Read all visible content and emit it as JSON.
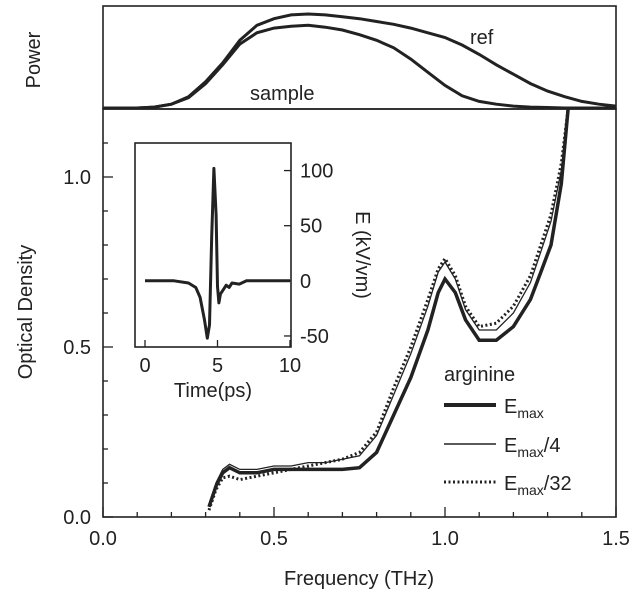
{
  "chart_data": [
    {
      "type": "line",
      "panel": "power",
      "ylabel": "Power",
      "xlim": [
        0.0,
        1.5
      ],
      "annotations": [
        "ref",
        "sample"
      ],
      "series": [
        {
          "name": "ref",
          "x": [
            0.0,
            0.1,
            0.15,
            0.2,
            0.25,
            0.3,
            0.35,
            0.4,
            0.45,
            0.5,
            0.55,
            0.6,
            0.65,
            0.7,
            0.75,
            0.8,
            0.85,
            0.9,
            0.95,
            1.0,
            1.05,
            1.1,
            1.15,
            1.2,
            1.25,
            1.3,
            1.35,
            1.4,
            1.45,
            1.5
          ],
          "y": [
            0.0,
            0.0,
            0.01,
            0.04,
            0.12,
            0.28,
            0.48,
            0.72,
            0.88,
            0.95,
            0.99,
            1.0,
            0.99,
            0.97,
            0.95,
            0.92,
            0.89,
            0.85,
            0.8,
            0.75,
            0.67,
            0.57,
            0.46,
            0.36,
            0.26,
            0.18,
            0.12,
            0.07,
            0.04,
            0.02
          ]
        },
        {
          "name": "sample",
          "x": [
            0.0,
            0.1,
            0.15,
            0.2,
            0.25,
            0.3,
            0.35,
            0.4,
            0.45,
            0.5,
            0.55,
            0.6,
            0.65,
            0.7,
            0.75,
            0.8,
            0.85,
            0.9,
            0.95,
            1.0,
            1.05,
            1.1,
            1.15,
            1.2,
            1.25,
            1.3,
            1.35,
            1.4,
            1.45,
            1.5
          ],
          "y": [
            0.0,
            0.0,
            0.01,
            0.04,
            0.11,
            0.26,
            0.46,
            0.68,
            0.8,
            0.85,
            0.87,
            0.88,
            0.86,
            0.83,
            0.78,
            0.72,
            0.64,
            0.52,
            0.38,
            0.24,
            0.13,
            0.07,
            0.04,
            0.02,
            0.01,
            0.005,
            0.0,
            0.0,
            0.0,
            0.0
          ]
        }
      ]
    },
    {
      "type": "line",
      "panel": "optical-density",
      "xlabel": "Frequency (THz)",
      "ylabel": "Optical Density",
      "xlim": [
        0.0,
        1.5
      ],
      "ylim": [
        0.0,
        1.2
      ],
      "xticks": [
        "0.0",
        "0.5",
        "1.0",
        "1.5"
      ],
      "yticks": [
        "0.0",
        "0.5",
        "1.0"
      ],
      "legend_title": "arginine",
      "legend_position": "lower-right",
      "series": [
        {
          "name": "E_max",
          "legend_main": "E",
          "legend_sub": "max",
          "legend_suffix": "",
          "style": "thick",
          "x": [
            0.31,
            0.33,
            0.35,
            0.37,
            0.4,
            0.45,
            0.5,
            0.55,
            0.6,
            0.65,
            0.7,
            0.75,
            0.8,
            0.85,
            0.9,
            0.95,
            0.98,
            1.0,
            1.03,
            1.06,
            1.1,
            1.15,
            1.2,
            1.25,
            1.28,
            1.31,
            1.34,
            1.36
          ],
          "y": [
            0.03,
            0.09,
            0.13,
            0.145,
            0.13,
            0.13,
            0.14,
            0.14,
            0.14,
            0.14,
            0.14,
            0.145,
            0.19,
            0.3,
            0.41,
            0.55,
            0.66,
            0.7,
            0.66,
            0.58,
            0.52,
            0.52,
            0.56,
            0.64,
            0.72,
            0.8,
            0.98,
            1.2
          ]
        },
        {
          "name": "E_max/4",
          "legend_main": "E",
          "legend_sub": "max",
          "legend_suffix": "/4",
          "style": "thin",
          "x": [
            0.31,
            0.33,
            0.35,
            0.37,
            0.4,
            0.45,
            0.5,
            0.55,
            0.6,
            0.65,
            0.7,
            0.75,
            0.8,
            0.85,
            0.9,
            0.95,
            0.98,
            1.0,
            1.03,
            1.06,
            1.1,
            1.15,
            1.2,
            1.25,
            1.28,
            1.31,
            1.34,
            1.36
          ],
          "y": [
            0.03,
            0.1,
            0.14,
            0.155,
            0.14,
            0.14,
            0.15,
            0.15,
            0.16,
            0.16,
            0.17,
            0.18,
            0.24,
            0.36,
            0.48,
            0.62,
            0.72,
            0.75,
            0.7,
            0.61,
            0.55,
            0.55,
            0.6,
            0.69,
            0.78,
            0.87,
            1.02,
            1.2
          ]
        },
        {
          "name": "E_max/32",
          "legend_main": "E",
          "legend_sub": "max",
          "legend_suffix": "/32",
          "style": "dotted",
          "x": [
            0.31,
            0.33,
            0.35,
            0.37,
            0.4,
            0.45,
            0.5,
            0.55,
            0.6,
            0.65,
            0.7,
            0.75,
            0.8,
            0.85,
            0.9,
            0.95,
            0.98,
            1.0,
            1.03,
            1.06,
            1.1,
            1.15,
            1.2,
            1.25,
            1.28,
            1.31,
            1.34,
            1.36
          ],
          "y": [
            0.02,
            0.08,
            0.115,
            0.12,
            0.11,
            0.12,
            0.13,
            0.14,
            0.15,
            0.16,
            0.17,
            0.19,
            0.25,
            0.38,
            0.5,
            0.64,
            0.73,
            0.76,
            0.71,
            0.62,
            0.56,
            0.57,
            0.62,
            0.71,
            0.8,
            0.89,
            1.04,
            1.2
          ]
        }
      ]
    },
    {
      "type": "line",
      "panel": "inset",
      "xlabel": "Time(ps)",
      "ylabel": "E (kV/vm)",
      "xlim": [
        0,
        10
      ],
      "ylim": [
        -60,
        125
      ],
      "xticks": [
        "0",
        "5",
        "10"
      ],
      "yticks": [
        "100",
        "50",
        "0",
        "-50"
      ],
      "series": [
        {
          "name": "E(t)",
          "x": [
            0,
            1,
            2,
            3,
            3.5,
            3.8,
            4.1,
            4.3,
            4.45,
            4.6,
            4.75,
            4.9,
            5.0,
            5.1,
            5.2,
            5.4,
            5.6,
            5.8,
            6.0,
            6.5,
            7,
            8,
            9,
            10
          ],
          "y": [
            0,
            0,
            0,
            -2,
            -6,
            -15,
            -35,
            -52,
            -40,
            40,
            102,
            60,
            -5,
            -20,
            -12,
            -8,
            -4,
            -6,
            -2,
            -3,
            0,
            0,
            0,
            0
          ]
        }
      ]
    }
  ]
}
